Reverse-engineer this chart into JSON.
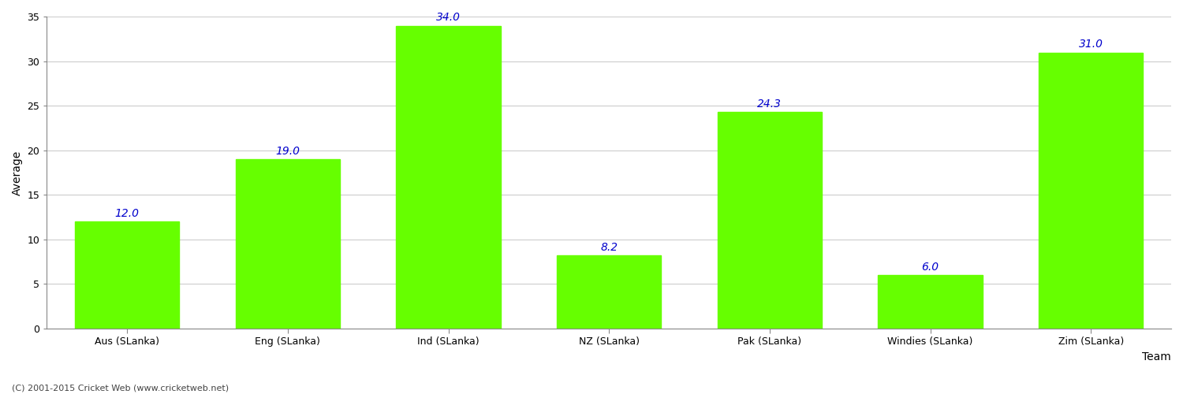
{
  "categories": [
    "Aus (SLanka)",
    "Eng (SLanka)",
    "Ind (SLanka)",
    "NZ (SLanka)",
    "Pak (SLanka)",
    "Windies (SLanka)",
    "Zim (SLanka)"
  ],
  "values": [
    12.0,
    19.0,
    34.0,
    8.2,
    24.3,
    6.0,
    31.0
  ],
  "bar_color": "#66ff00",
  "bar_edge_color": "#66ff00",
  "xlabel": "Team",
  "ylabel": "Average",
  "ylim": [
    0,
    35
  ],
  "yticks": [
    0,
    5,
    10,
    15,
    20,
    25,
    30,
    35
  ],
  "label_color": "#0000cc",
  "label_fontsize": 10,
  "axis_label_fontsize": 10,
  "tick_fontsize": 9,
  "grid_color": "#cccccc",
  "background_color": "#ffffff",
  "footer_text": "(C) 2001-2015 Cricket Web (www.cricketweb.net)",
  "footer_fontsize": 8,
  "footer_color": "#444444"
}
